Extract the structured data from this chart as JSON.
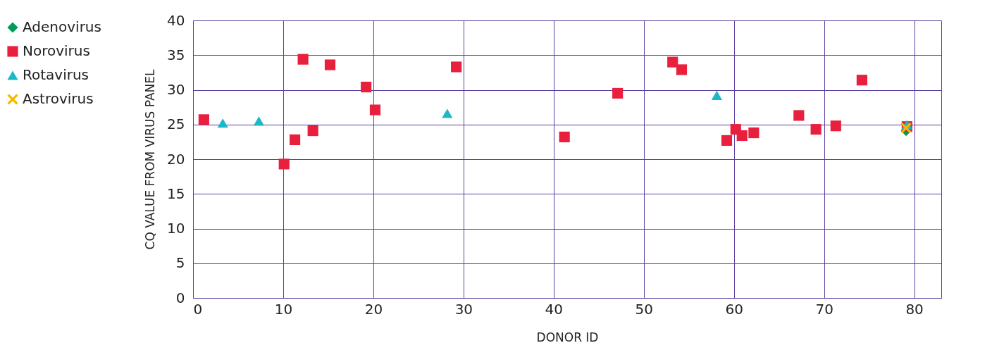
{
  "chart_data": {
    "type": "scatter",
    "xlabel": "DONOR ID",
    "ylabel": "CQ VALUE FROM VIRUS PANEL",
    "xlim": [
      0,
      83
    ],
    "ylim": [
      0,
      40
    ],
    "xticks": [
      0,
      10,
      20,
      30,
      40,
      50,
      60,
      70,
      80
    ],
    "yticks": [
      0,
      5,
      10,
      15,
      20,
      25,
      30,
      35,
      40
    ],
    "grid": true,
    "legend": "left",
    "series": [
      {
        "name": "Adenovirus",
        "color": "#009a5a",
        "marker": "diamond",
        "x": [
          79.1
        ],
        "values": [
          24.1
        ]
      },
      {
        "name": "Norovirus",
        "color": "#e8203e",
        "marker": "square",
        "x": [
          1.2,
          10.1,
          11.3,
          12.2,
          13.3,
          15.2,
          19.2,
          20.2,
          29.2,
          41.2,
          47.1,
          53.2,
          54.2,
          59.2,
          60.2,
          60.9,
          62.2,
          67.2,
          69.1,
          71.3,
          74.2,
          79.2
        ],
        "values": [
          25.7,
          19.3,
          22.8,
          34.4,
          24.1,
          33.6,
          30.4,
          27.1,
          33.3,
          23.2,
          29.5,
          34.0,
          32.9,
          22.7,
          24.3,
          23.4,
          23.8,
          26.3,
          24.3,
          24.8,
          31.4,
          24.7
        ]
      },
      {
        "name": "Rotavirus",
        "color": "#1ab8c8",
        "marker": "triangle",
        "x": [
          3.3,
          7.3,
          28.2,
          58.1,
          79.2
        ],
        "values": [
          25.2,
          25.5,
          26.6,
          29.2,
          25.0
        ]
      },
      {
        "name": "Astrovirus",
        "color": "#f5b800",
        "marker": "cross",
        "x": [
          79.1
        ],
        "values": [
          24.5
        ]
      }
    ]
  }
}
